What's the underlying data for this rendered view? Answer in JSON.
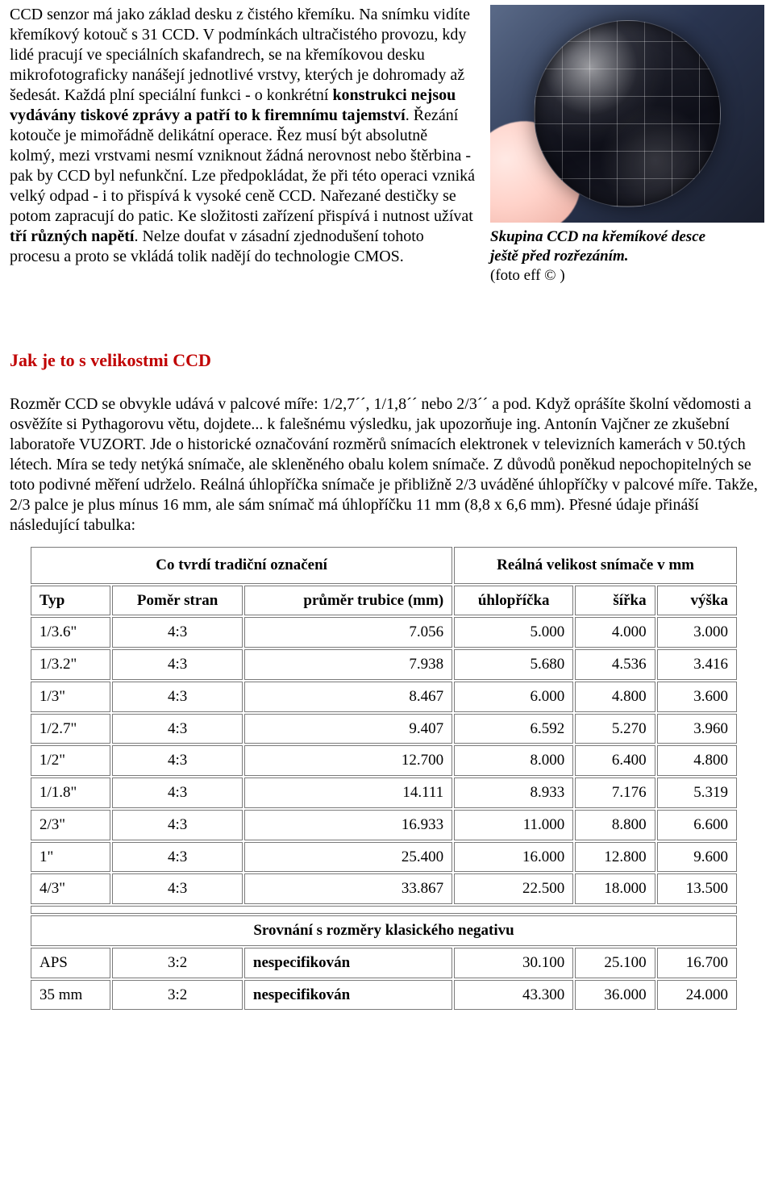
{
  "para1_prefix": "CCD senzor má jako základ desku z čistého křemíku. Na snímku vidíte křemíkový kotouč s 31 CCD. V podmínkách ultračistého provozu, kdy lidé pracují ve speciálních skafandrech, se na křemíkovou desku mikrofotograficky nanášejí jednotlivé vrstvy, kterých je dohromady až šedesát. Každá plní speciální funkci - o konkrétní ",
  "para1_bold1": "konstrukci nejsou vydávány tiskové zprávy a patří to k firemnímu tajemství",
  "para1_mid": ". Řezání kotouče je mimořádně delikátní operace. Řez musí být absolutně kolmý, mezi vrstvami nesmí vzniknout žádná nerovnost nebo štěrbina - pak by CCD byl nefunkční. Lze předpokládat, že při této operaci vzniká velký odpad - i to přispívá k vysoké ceně CCD. Nařezané destičky se potom zapracují do patic. Ke složitosti zařízení přispívá i nutnost užívat ",
  "para1_bold2": "tří různých napětí",
  "para1_suffix": ". Nelze doufat v zásadní zjednodušení tohoto procesu a proto se vkládá tolik nadějí do technologie CMOS.",
  "caption_line1": "Skupina CCD na křemíkové desce",
  "caption_line2": "ještě před rozřezáním.",
  "caption_credit": "(foto eff © )",
  "heading": "Jak je to s velikostmi CCD",
  "para2": "Rozměr CCD se obvykle udává v palcové míře: 1/2,7´´, 1/1,8´´ nebo 2/3´´ a pod. Když oprášíte školní vědomosti a osvěžíte si Pythagorovu větu, dojdete... k falešnému výsledku, jak upozorňuje ing. Antonín Vajčner ze zkušební laboratoře VUZORT. Jde o historické označování rozměrů snímacích elektronek v televizních kamerách v 50.tých létech. Míra se tedy netýká snímače, ale skleněného obalu kolem snímače. Z důvodů poněkud nepochopitelných se toto podivné měření udrželo. Reálná úhlopříčka snímače je přibližně 2/3 uváděné úhlopříčky v palcové míře. Takže, 2/3 palce je plus mínus 16 mm, ale sám snímač má úhlopříčku 11 mm (8,8 x 6,6 mm). Přesné údaje přináší následující tabulka:",
  "table": {
    "top_left": "Co tvrdí tradiční označení",
    "top_right": "Reálná velikost snímače v mm",
    "h_typ": "Typ",
    "h_pomer": "Poměr stran",
    "h_prumer": "průměr trubice (mm)",
    "h_uhlo": "úhlopříčka",
    "h_sirka": "šířka",
    "h_vyska": "výška",
    "rows": [
      [
        "1/3.6\"",
        "4:3",
        "7.056",
        "5.000",
        "4.000",
        "3.000"
      ],
      [
        "1/3.2\"",
        "4:3",
        "7.938",
        "5.680",
        "4.536",
        "3.416"
      ],
      [
        "1/3\"",
        "4:3",
        "8.467",
        "6.000",
        "4.800",
        "3.600"
      ],
      [
        "1/2.7\"",
        "4:3",
        "9.407",
        "6.592",
        "5.270",
        "3.960"
      ],
      [
        "1/2\"",
        "4:3",
        "12.700",
        "8.000",
        "6.400",
        "4.800"
      ],
      [
        "1/1.8\"",
        "4:3",
        "14.111",
        "8.933",
        "7.176",
        "5.319"
      ],
      [
        "2/3\"",
        "4:3",
        "16.933",
        "11.000",
        "8.800",
        "6.600"
      ],
      [
        "1\"",
        "4:3",
        "25.400",
        "16.000",
        "12.800",
        "9.600"
      ],
      [
        "4/3\"",
        "4:3",
        "33.867",
        "22.500",
        "18.000",
        "13.500"
      ]
    ],
    "cmp_header": "Srovnání s rozměry klasického negativu",
    "cmp_rows": [
      [
        "APS",
        "3:2",
        "nespecifikován",
        "30.100",
        "25.100",
        "16.700"
      ],
      [
        "35 mm",
        "3:2",
        "nespecifikován",
        "43.300",
        "36.000",
        "24.000"
      ]
    ]
  }
}
